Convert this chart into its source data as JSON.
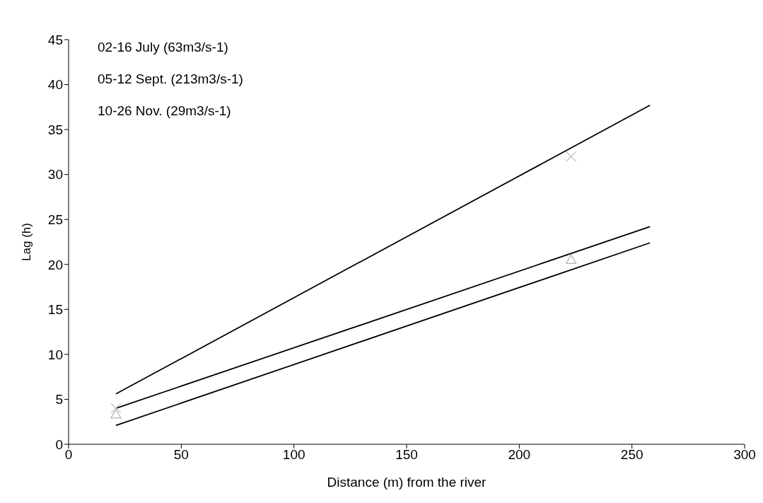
{
  "chart_data": {
    "type": "line",
    "xlabel": "Distance (m) from the river",
    "ylabel": "Lag (h)",
    "xlim": [
      0,
      300
    ],
    "xticks": [
      0,
      50,
      100,
      150,
      200,
      250,
      300
    ],
    "ylim": [
      0,
      45
    ],
    "yticks": [
      0,
      5,
      10,
      15,
      20,
      25,
      30,
      35,
      40,
      45
    ],
    "annotations": [
      "02-16 July (63m3/s-1)",
      "05-12 Sept. (213m3/s-1)",
      "10-26 Nov. (29m3/s-1)"
    ],
    "grid": false,
    "marker": "none",
    "line_style": "solid",
    "series": [
      {
        "color": "#000000",
        "x": [
          21,
          258
        ],
        "values": [
          5.6,
          37.7
        ]
      },
      {
        "color": "#000000",
        "x": [
          21,
          258
        ],
        "values": [
          4.0,
          24.2
        ]
      },
      {
        "color": "#000000",
        "x": [
          21,
          258
        ],
        "values": [
          2.1,
          22.4
        ]
      },
      {
        "type": "scatter",
        "color": "#c0c0c0",
        "marker": "cross",
        "x": [
          21,
          223
        ],
        "values": [
          4.0,
          32
        ]
      },
      {
        "type": "scatter",
        "color": "#b0b0b0",
        "marker": "triangle",
        "x": [
          21,
          223
        ],
        "values": [
          3.3,
          20.5
        ]
      }
    ]
  }
}
